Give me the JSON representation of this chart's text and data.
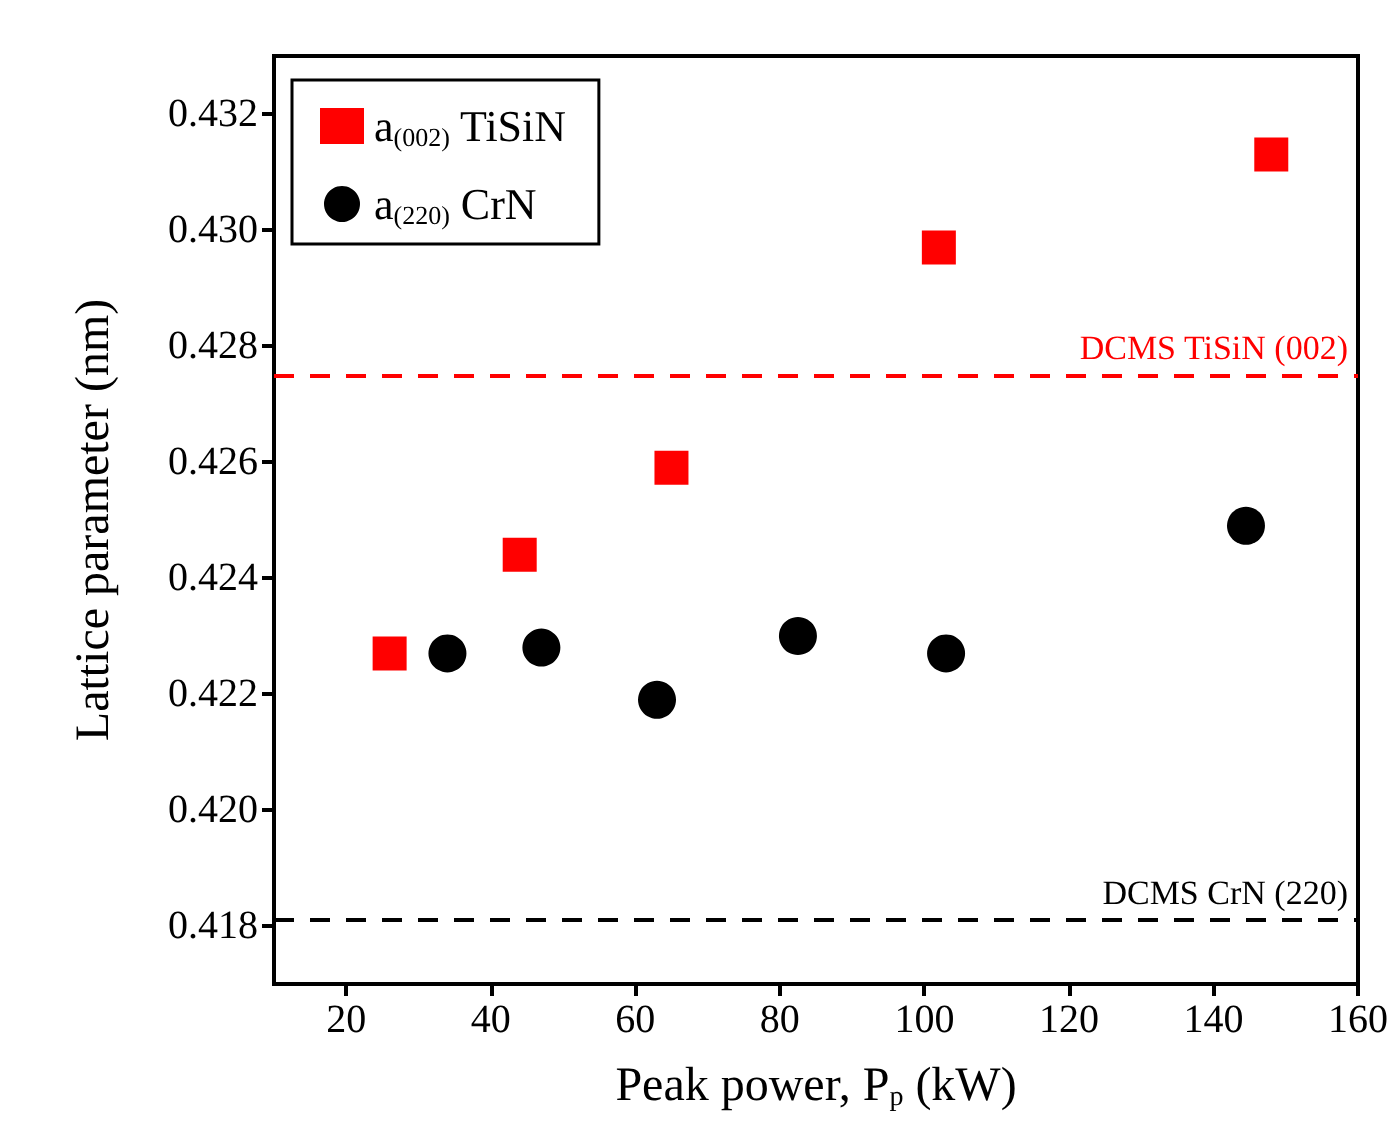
{
  "chart_data": {
    "type": "scatter",
    "xlabel": "Peak power, P$_{p}$ (kW)",
    "ylabel": "Lattice parameter (nm)",
    "xlim": [
      10,
      160
    ],
    "xticks": [
      20,
      40,
      60,
      80,
      100,
      120,
      140,
      160
    ],
    "ylim": [
      0.417,
      0.433
    ],
    "yticks": [
      0.418,
      {
        "value": 0.42,
        "label": "0.420"
      },
      0.422,
      0.424,
      0.426,
      0.428,
      {
        "value": 0.43,
        "label": "0.430"
      },
      0.432
    ],
    "grid": false,
    "legend": "top left",
    "series": [
      {
        "name": "a$_{(002)}$ TiSiN",
        "color": "#ff0000",
        "marker": "square",
        "x": [
          26,
          44,
          65,
          102,
          148
        ],
        "values": [
          0.4227,
          0.4244,
          0.4259,
          0.4297,
          0.4313
        ]
      },
      {
        "name": "a$_{(220)}$ CrN",
        "color": "#000000",
        "marker": "circle",
        "x": [
          34,
          47,
          63,
          82.5,
          103,
          144.5
        ],
        "values": [
          0.4227,
          0.4228,
          0.4219,
          0.423,
          0.4227,
          0.4249
        ]
      }
    ],
    "ref_lines": [
      {
        "axis": "y",
        "value": 0.4275,
        "label": "DCMS TiSiN (002)",
        "color": "#ff0000",
        "line_style": "dashed"
      },
      {
        "axis": "y",
        "value": 0.4181,
        "label": "DCMS CrN (220)",
        "color": "#000000",
        "line_style": "dashed"
      }
    ]
  }
}
